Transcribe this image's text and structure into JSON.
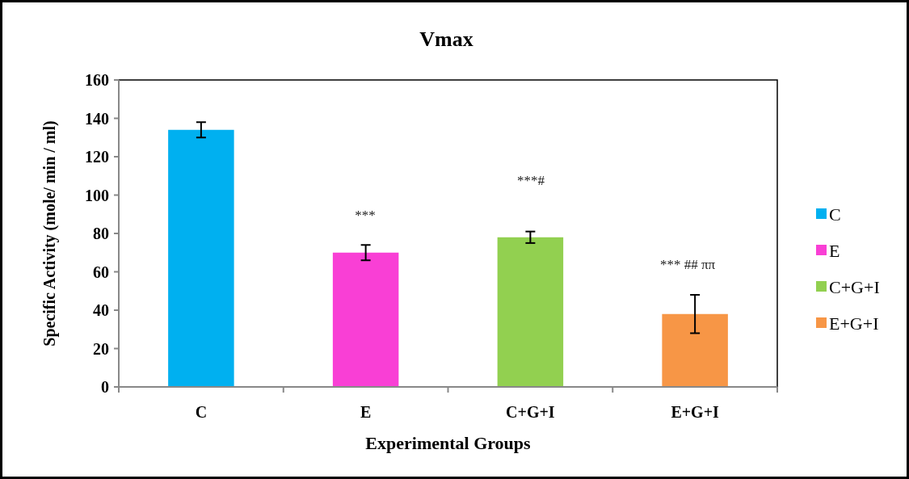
{
  "chart_data": {
    "type": "bar",
    "title": "Vmax",
    "xlabel": "Experimental Groups",
    "ylabel": "Specific Activity (mole/ min / ml)",
    "categories": [
      "C",
      "E",
      "C+G+I",
      "E+G+I"
    ],
    "stacked": true,
    "series": [
      {
        "name": "C",
        "color": "#00b0f0",
        "values": [
          134,
          null,
          null,
          null
        ],
        "errors": [
          4,
          null,
          null,
          null
        ]
      },
      {
        "name": "E",
        "color": "#f93fd5",
        "values": [
          null,
          70,
          null,
          null
        ],
        "errors": [
          null,
          4,
          null,
          null
        ]
      },
      {
        "name": "C+G+I",
        "color": "#92d050",
        "values": [
          null,
          null,
          78,
          null
        ],
        "errors": [
          null,
          null,
          3,
          null
        ]
      },
      {
        "name": "E+G+I",
        "color": "#f79646",
        "values": [
          null,
          null,
          null,
          38
        ],
        "errors": [
          null,
          null,
          null,
          10
        ]
      }
    ],
    "ylim": [
      0,
      160
    ],
    "yticks": [
      0,
      20,
      40,
      60,
      80,
      100,
      120,
      140,
      160
    ],
    "annotations": [
      "***",
      "***#",
      "*** ## ππ"
    ],
    "legend": "right"
  }
}
